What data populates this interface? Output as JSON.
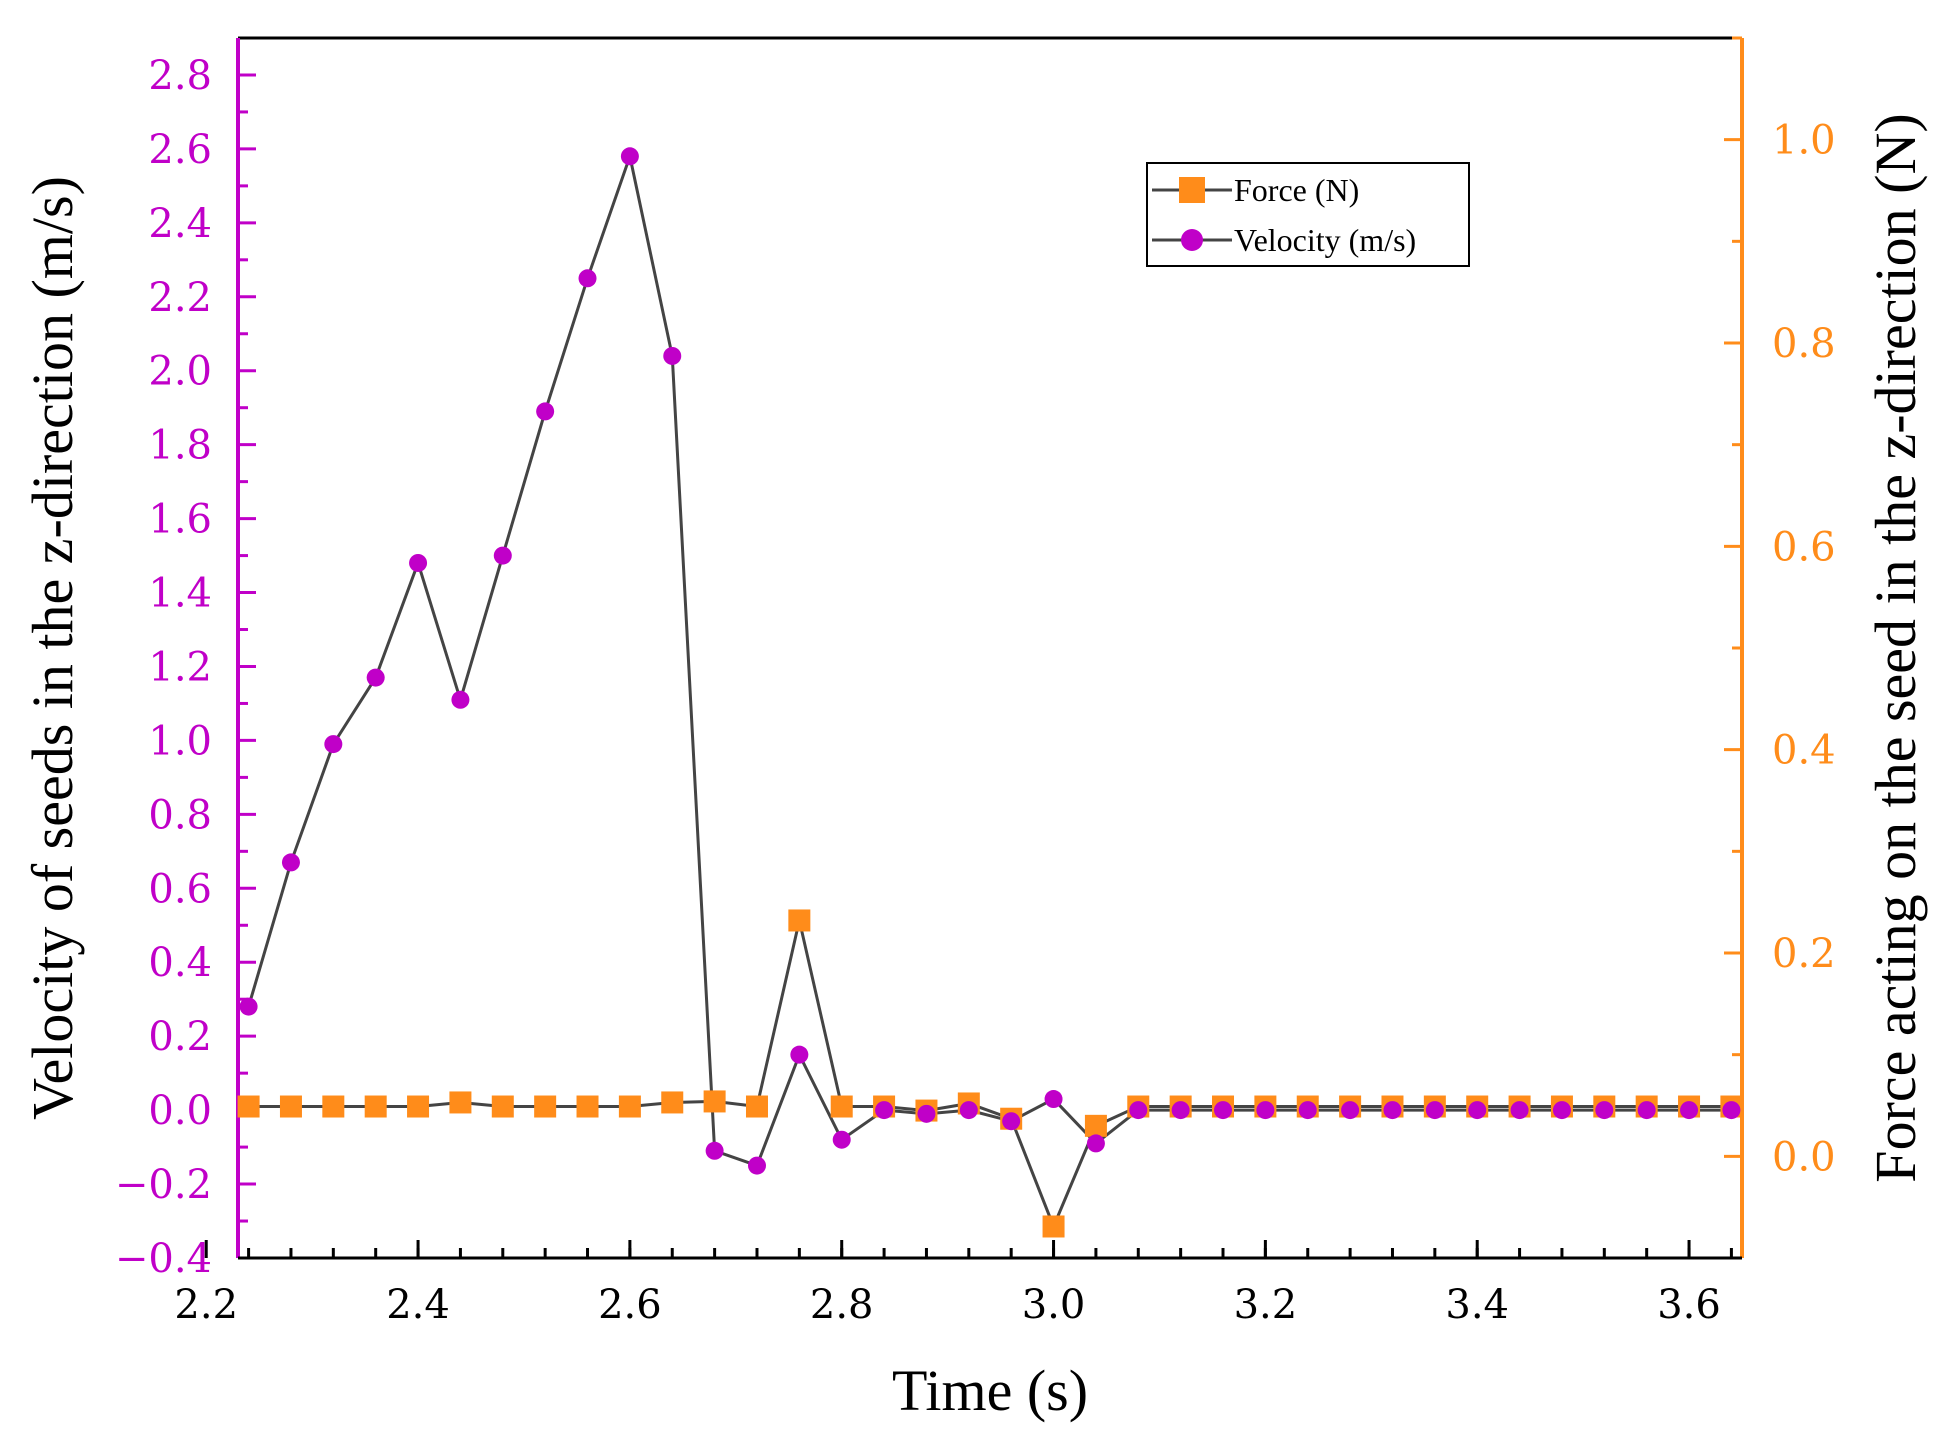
{
  "chart_data": {
    "type": "line",
    "x_title": "Time (s)",
    "y_left_title": "Velocity of seeds in the z-direction (m/s)",
    "y_right_title": "Force acting on the seed in the z-direction (N)",
    "x_range": [
      2.23,
      3.65
    ],
    "y_left_range": [
      -0.4,
      2.9
    ],
    "y_right_range": [
      -0.1,
      1.1
    ],
    "x_ticks": [
      2.2,
      2.4,
      2.6,
      2.8,
      3.0,
      3.2,
      3.4,
      3.6
    ],
    "x_tick_labels": [
      "2.2",
      "2.4",
      "2.6",
      "2.8",
      "3.0",
      "3.2",
      "3.4",
      "3.6"
    ],
    "y_left_ticks": [
      -0.4,
      -0.2,
      0.0,
      0.2,
      0.4,
      0.6,
      0.8,
      1.0,
      1.2,
      1.4,
      1.6,
      1.8,
      2.0,
      2.2,
      2.4,
      2.6,
      2.8
    ],
    "y_left_tick_labels": [
      "−0.4",
      "−0.2",
      "0.0",
      "0.2",
      "0.4",
      "0.6",
      "0.8",
      "1.0",
      "1.2",
      "1.4",
      "1.6",
      "1.8",
      "2.0",
      "2.2",
      "2.4",
      "2.6",
      "2.8"
    ],
    "y_right_ticks": [
      0.0,
      0.2,
      0.4,
      0.6,
      0.8,
      1.0
    ],
    "y_right_tick_labels": [
      "0.0",
      "0.2",
      "0.4",
      "0.6",
      "0.8",
      "1.0"
    ],
    "legend": {
      "position": "top-right",
      "entries": [
        "Force (N)",
        "Velocity (m/s)"
      ]
    },
    "colors": {
      "velocity_marker": "#c000c8",
      "force_marker": "#ff8c1a",
      "line": "#444444",
      "left_axis": "#c000c8",
      "right_axis": "#ff8c1a",
      "bottom_axis": "#000000"
    },
    "series": [
      {
        "name": "Velocity (m/s)",
        "axis": "left",
        "marker": "circle",
        "x": [
          2.24,
          2.28,
          2.32,
          2.36,
          2.4,
          2.44,
          2.48,
          2.52,
          2.56,
          2.6,
          2.64,
          2.68,
          2.72,
          2.76,
          2.8,
          2.84,
          2.88,
          2.92,
          2.96,
          3.0,
          3.04,
          3.08,
          3.12,
          3.16,
          3.2,
          3.24,
          3.28,
          3.32,
          3.36,
          3.4,
          3.44,
          3.48,
          3.52,
          3.56,
          3.6,
          3.64
        ],
        "values": [
          0.28,
          0.67,
          0.99,
          1.17,
          1.48,
          1.11,
          1.5,
          1.89,
          2.25,
          2.58,
          2.04,
          -0.11,
          -0.15,
          0.15,
          -0.08,
          0.0,
          -0.01,
          0.0,
          -0.03,
          0.03,
          -0.09,
          0.0,
          0.0,
          0.0,
          0.0,
          0.0,
          0.0,
          0.0,
          0.0,
          0.0,
          0.0,
          0.0,
          0.0,
          0.0,
          0.0,
          0.0
        ]
      },
      {
        "name": "Force (N)",
        "axis": "right",
        "marker": "square",
        "x": [
          2.24,
          2.28,
          2.32,
          2.36,
          2.4,
          2.44,
          2.48,
          2.52,
          2.56,
          2.6,
          2.64,
          2.68,
          2.72,
          2.76,
          2.8,
          2.84,
          2.88,
          2.92,
          2.96,
          3.0,
          3.04,
          3.08,
          3.12,
          3.16,
          3.2,
          3.24,
          3.28,
          3.32,
          3.36,
          3.4,
          3.44,
          3.48,
          3.52,
          3.56,
          3.6,
          3.64
        ],
        "values": [
          0.049,
          0.049,
          0.049,
          0.049,
          0.049,
          0.053,
          0.049,
          0.049,
          0.049,
          0.049,
          0.053,
          0.054,
          0.049,
          0.232,
          0.049,
          0.049,
          0.045,
          0.052,
          0.037,
          -0.069,
          0.03,
          0.049,
          0.049,
          0.049,
          0.049,
          0.049,
          0.049,
          0.049,
          0.049,
          0.049,
          0.049,
          0.049,
          0.049,
          0.049,
          0.049,
          0.049
        ]
      }
    ]
  }
}
